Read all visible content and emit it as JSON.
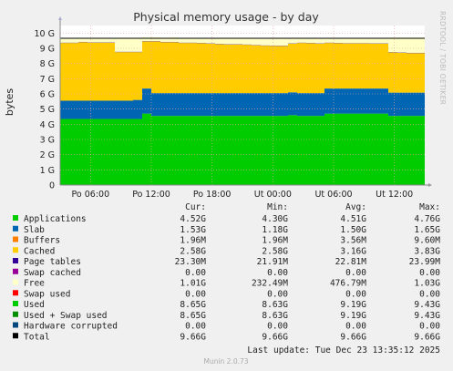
{
  "side_text": "RRDTOOL / TOBI OETIKER",
  "footer_text": "Munin 2.0.73",
  "legend_header": {
    "cur": "Cur:",
    "min": "Min:",
    "avg": "Avg:",
    "max": "Max:"
  },
  "last_update": "Last update: Tue Dec 23 13:35:12 2025",
  "chart_data": {
    "type": "area",
    "title": "Physical memory usage - by day",
    "ylabel": "bytes",
    "ylim": [
      0,
      10.5
    ],
    "y_unit": "G",
    "y_ticks": [
      {
        "value": 0,
        "label": "0"
      },
      {
        "value": 1,
        "label": "1 G"
      },
      {
        "value": 2,
        "label": "2 G"
      },
      {
        "value": 3,
        "label": "3 G"
      },
      {
        "value": 4,
        "label": "4 G"
      },
      {
        "value": 5,
        "label": "5 G"
      },
      {
        "value": 6,
        "label": "6 G"
      },
      {
        "value": 7,
        "label": "7 G"
      },
      {
        "value": 8,
        "label": "8 G"
      },
      {
        "value": 9,
        "label": "9 G"
      },
      {
        "value": 10,
        "label": "10 G"
      }
    ],
    "x_ticks": [
      "Po 06:00",
      "Po 12:00",
      "Po 18:00",
      "Ut 00:00",
      "Ut 06:00",
      "Ut 12:00"
    ],
    "grid": true,
    "stacked_series": [
      {
        "name": "Applications",
        "color": "#00cc00",
        "values": [
          4.35,
          4.35,
          4.35,
          4.35,
          4.35,
          4.35,
          4.35,
          4.35,
          4.35,
          4.7,
          4.55,
          4.55,
          4.55,
          4.55,
          4.55,
          4.55,
          4.55,
          4.55,
          4.55,
          4.55,
          4.55,
          4.55,
          4.55,
          4.55,
          4.55,
          4.6,
          4.55,
          4.55,
          4.55,
          4.7,
          4.7,
          4.7,
          4.7,
          4.7,
          4.7,
          4.7,
          4.55,
          4.55,
          4.55,
          4.55,
          4.52
        ]
      },
      {
        "name": "Slab",
        "color": "#0066b3",
        "values": [
          1.2,
          1.2,
          1.2,
          1.2,
          1.2,
          1.2,
          1.2,
          1.2,
          1.25,
          1.65,
          1.5,
          1.5,
          1.5,
          1.5,
          1.5,
          1.5,
          1.5,
          1.5,
          1.5,
          1.5,
          1.5,
          1.5,
          1.5,
          1.5,
          1.5,
          1.5,
          1.5,
          1.5,
          1.5,
          1.65,
          1.65,
          1.65,
          1.65,
          1.65,
          1.65,
          1.65,
          1.53,
          1.53,
          1.53,
          1.53,
          1.53
        ]
      },
      {
        "name": "Buffers",
        "color": "#ff8000",
        "values": [
          0.002,
          0.002,
          0.002,
          0.002,
          0.002,
          0.002,
          0.002,
          0.002,
          0.002,
          0.002,
          0.002,
          0.002,
          0.002,
          0.002,
          0.002,
          0.002,
          0.002,
          0.002,
          0.002,
          0.002,
          0.002,
          0.002,
          0.002,
          0.002,
          0.002,
          0.002,
          0.002,
          0.002,
          0.002,
          0.002,
          0.002,
          0.002,
          0.002,
          0.002,
          0.002,
          0.002,
          0.002,
          0.002,
          0.002,
          0.002,
          0.002
        ]
      },
      {
        "name": "Cached",
        "color": "#ffcc00",
        "values": [
          3.8,
          3.8,
          3.85,
          3.82,
          3.82,
          3.82,
          3.2,
          3.2,
          3.15,
          3.1,
          3.4,
          3.35,
          3.35,
          3.3,
          3.3,
          3.28,
          3.25,
          3.22,
          3.2,
          3.2,
          3.18,
          3.15,
          3.12,
          3.1,
          3.1,
          3.2,
          3.3,
          3.28,
          3.25,
          3.0,
          2.98,
          2.97,
          2.97,
          2.97,
          2.95,
          2.95,
          2.65,
          2.62,
          2.6,
          2.6,
          2.58
        ]
      },
      {
        "name": "Page tables",
        "color": "#330099",
        "values": [
          0.022,
          0.022,
          0.022,
          0.022,
          0.022,
          0.022,
          0.022,
          0.022,
          0.022,
          0.022,
          0.022,
          0.022,
          0.022,
          0.022,
          0.022,
          0.022,
          0.022,
          0.022,
          0.022,
          0.022,
          0.022,
          0.022,
          0.022,
          0.022,
          0.022,
          0.022,
          0.022,
          0.022,
          0.022,
          0.022,
          0.022,
          0.022,
          0.022,
          0.022,
          0.022,
          0.022,
          0.022,
          0.022,
          0.022,
          0.022,
          0.023
        ]
      },
      {
        "name": "Swap cached",
        "color": "#990099",
        "values": [
          0,
          0,
          0,
          0,
          0,
          0,
          0,
          0,
          0,
          0,
          0,
          0,
          0,
          0,
          0,
          0,
          0,
          0,
          0,
          0,
          0,
          0,
          0,
          0,
          0,
          0,
          0,
          0,
          0,
          0,
          0,
          0,
          0,
          0,
          0,
          0,
          0,
          0,
          0,
          0,
          0
        ]
      },
      {
        "name": "Free",
        "color": "#ffffc8",
        "values": [
          0.25,
          0.25,
          0.25,
          0.25,
          0.25,
          0.25,
          0.9,
          0.9,
          0.9,
          0.25,
          0.25,
          0.27,
          0.3,
          0.3,
          0.3,
          0.32,
          0.34,
          0.35,
          0.36,
          0.37,
          0.38,
          0.4,
          0.42,
          0.45,
          0.45,
          0.3,
          0.28,
          0.3,
          0.32,
          0.3,
          0.32,
          0.32,
          0.33,
          0.33,
          0.34,
          0.34,
          0.95,
          0.98,
          1.0,
          1.0,
          1.01
        ]
      }
    ],
    "lines": [
      {
        "name": "Total",
        "color": "#000000",
        "value": 9.66
      }
    ],
    "legend": [
      {
        "name": "Applications",
        "color": "#00cc00",
        "cur": "4.52G",
        "min": "4.30G",
        "avg": "4.51G",
        "max": "4.76G"
      },
      {
        "name": "Slab",
        "color": "#0066b3",
        "cur": "1.53G",
        "min": "1.18G",
        "avg": "1.50G",
        "max": "1.65G"
      },
      {
        "name": "Buffers",
        "color": "#ff8000",
        "cur": "1.96M",
        "min": "1.96M",
        "avg": "3.56M",
        "max": "9.60M"
      },
      {
        "name": "Cached",
        "color": "#ffcc00",
        "cur": "2.58G",
        "min": "2.58G",
        "avg": "3.16G",
        "max": "3.83G"
      },
      {
        "name": "Page tables",
        "color": "#330099",
        "cur": "23.30M",
        "min": "21.91M",
        "avg": "22.81M",
        "max": "23.99M"
      },
      {
        "name": "Swap cached",
        "color": "#990099",
        "cur": "0.00",
        "min": "0.00",
        "avg": "0.00",
        "max": "0.00"
      },
      {
        "name": "Free",
        "color": "#ffffc8",
        "cur": "1.01G",
        "min": "232.49M",
        "avg": "476.79M",
        "max": "1.03G"
      },
      {
        "name": "Swap used",
        "color": "#ff0000",
        "cur": "0.00",
        "min": "0.00",
        "avg": "0.00",
        "max": "0.00"
      },
      {
        "name": "Used",
        "color": "#00cc00",
        "cur": "8.65G",
        "min": "8.63G",
        "avg": "9.19G",
        "max": "9.43G"
      },
      {
        "name": "Used + Swap used",
        "color": "#008f00",
        "cur": "8.65G",
        "min": "8.63G",
        "avg": "9.19G",
        "max": "9.43G"
      },
      {
        "name": "Hardware corrupted",
        "color": "#00487d",
        "cur": "0.00",
        "min": "0.00",
        "avg": "0.00",
        "max": "0.00"
      },
      {
        "name": "Total",
        "color": "#000000",
        "cur": "9.66G",
        "min": "9.66G",
        "avg": "9.66G",
        "max": "9.66G"
      }
    ]
  }
}
